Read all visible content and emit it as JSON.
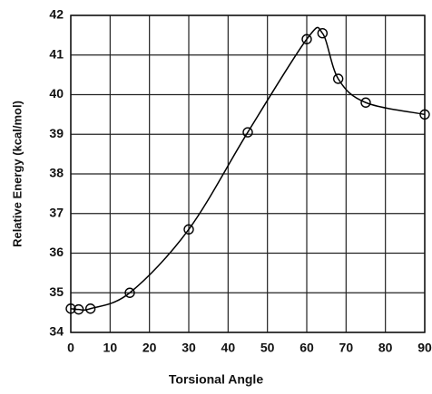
{
  "chart_data": {
    "type": "line",
    "x_label": "Torsional Angle",
    "y_label": "Relative Energy (kcal/mol)",
    "x": [
      0,
      2,
      5,
      15,
      30,
      45,
      60,
      64,
      68,
      75,
      90
    ],
    "series": [
      {
        "color": "#000000",
        "values": [
          34.6,
          34.58,
          34.6,
          35.0,
          36.6,
          39.05,
          41.4,
          41.55,
          40.4,
          39.8,
          39.5
        ]
      }
    ],
    "xlim": [
      0,
      90
    ],
    "xticks": [
      0,
      10,
      20,
      30,
      40,
      50,
      60,
      70,
      80,
      90
    ],
    "ylim": [
      34,
      42
    ],
    "yticks": [
      34,
      35,
      36,
      37,
      38,
      39,
      40,
      41,
      42
    ],
    "grid": true,
    "markers": "open-circle"
  }
}
